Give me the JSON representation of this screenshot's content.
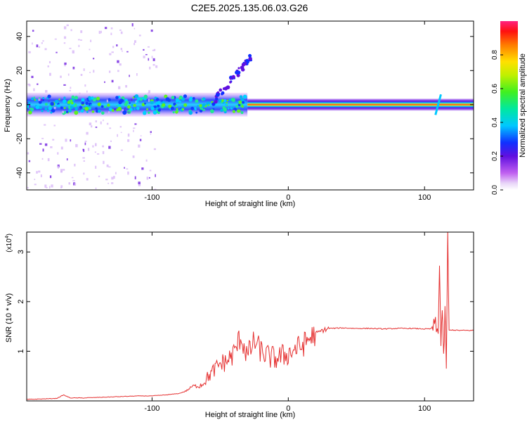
{
  "title": "C2E5.2025.135.06.03.G26",
  "colors": {
    "snr_line": "#e53030",
    "axes": "#000000"
  },
  "chart_data": [
    {
      "type": "heatmap",
      "name": "spectrogram",
      "xlabel": "Height of straight line (km)",
      "ylabel": "Frequency (Hz)",
      "xlim": [
        -192,
        136
      ],
      "ylim": [
        -50,
        49
      ],
      "xticks": [
        -100,
        0,
        100
      ],
      "xtick_labels": [
        "-100",
        "0",
        "100"
      ],
      "yticks": [
        -40,
        -20,
        0,
        20,
        40
      ],
      "ytick_labels": [
        "-40",
        "-20",
        "0",
        "20",
        "40"
      ],
      "colormap": "rainbow (magenta-blue-cyan-green-yellow-red)",
      "colorbar": {
        "label": "Normalized spectral amplitude",
        "range": [
          0,
          1
        ],
        "ticks": [
          0.0,
          0.2,
          0.4,
          0.6,
          0.8
        ],
        "tick_labels": [
          "0.0",
          "0.2",
          "0.4",
          "0.6",
          "0.8"
        ]
      },
      "features": [
        {
          "x_range": [
            -192,
            -30
          ],
          "freq_center": 0,
          "freq_halfwidth": 5,
          "amplitude_range": [
            0.15,
            0.45
          ],
          "description_key": "noisy band"
        },
        {
          "x_range": [
            -30,
            136
          ],
          "freq_center": 0,
          "freq_halfwidth": 1.5,
          "amplitude_range": [
            0.7,
            1.0
          ],
          "description_key": "narrow band"
        },
        {
          "x": 110,
          "freq_range": [
            -6,
            6
          ],
          "description_key": "transient"
        }
      ]
    },
    {
      "type": "line",
      "name": "snr",
      "xlabel": "Height of straight line (km)",
      "ylabel": "SNR (10 * v/v)",
      "y_multiplier": "(x10^4)",
      "y_multiplier_base": "(x10",
      "y_multiplier_exp": "4",
      "y_multiplier_close": ")",
      "xlim": [
        -192,
        136
      ],
      "ylim": [
        0,
        3.4
      ],
      "xticks": [
        -100,
        0,
        100
      ],
      "xtick_labels": [
        "-100",
        "0",
        "100"
      ],
      "yticks": [
        1,
        2,
        3
      ],
      "ytick_labels": [
        "1",
        "2",
        "3"
      ],
      "series": [
        {
          "x": [
            -192,
            -180,
            -170,
            -165,
            -160,
            -150,
            -140,
            -130,
            -120,
            -110,
            -100,
            -90,
            -80,
            -75,
            -70,
            -65,
            -60,
            -55,
            -50,
            -45,
            -40,
            -35,
            -30,
            -25,
            -20,
            -15,
            -10,
            -5,
            0,
            5,
            10,
            15,
            20,
            25,
            30,
            40,
            50,
            60,
            70,
            80,
            90,
            100,
            105,
            108,
            110,
            111,
            112,
            113,
            114,
            115,
            116,
            117,
            118,
            120,
            125,
            130,
            136
          ],
          "y": [
            0.03,
            0.04,
            0.05,
            0.12,
            0.06,
            0.06,
            0.07,
            0.08,
            0.09,
            0.1,
            0.1,
            0.12,
            0.15,
            0.2,
            0.3,
            0.3,
            0.45,
            0.6,
            0.75,
            0.8,
            0.95,
            1.3,
            0.9,
            1.2,
            1.0,
            0.9,
            0.85,
            0.9,
            0.95,
            1.05,
            1.1,
            1.25,
            1.35,
            1.42,
            1.46,
            1.47,
            1.46,
            1.46,
            1.45,
            1.46,
            1.46,
            1.45,
            1.45,
            1.55,
            1.3,
            2.85,
            1.1,
            1.9,
            0.8,
            1.8,
            0.7,
            3.35,
            1.42,
            1.43,
            1.42,
            1.42,
            1.42
          ]
        }
      ]
    }
  ]
}
